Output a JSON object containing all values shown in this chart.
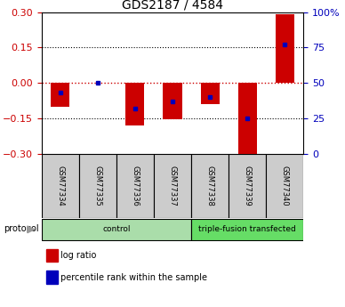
{
  "title": "GDS2187 / 4584",
  "samples": [
    "GSM77334",
    "GSM77335",
    "GSM77336",
    "GSM77337",
    "GSM77338",
    "GSM77339",
    "GSM77340"
  ],
  "log_ratios": [
    -0.1,
    0.0,
    -0.18,
    -0.155,
    -0.09,
    -0.305,
    0.29
  ],
  "percentile_ranks": [
    43,
    50,
    32,
    37,
    40,
    25,
    77
  ],
  "ylim_left": [
    -0.3,
    0.3
  ],
  "ylim_right": [
    0,
    100
  ],
  "yticks_left": [
    -0.3,
    -0.15,
    0,
    0.15,
    0.3
  ],
  "yticks_right": [
    0,
    25,
    50,
    75,
    100
  ],
  "ytick_labels_right": [
    "0",
    "25",
    "50",
    "75",
    "100%"
  ],
  "group_ranges": [
    [
      0,
      3,
      "control",
      "#aaddaa"
    ],
    [
      4,
      6,
      "triple-fusion transfected",
      "#66dd66"
    ]
  ],
  "protocol_label": "protocol",
  "bar_color_red": "#cc0000",
  "bar_color_blue": "#0000bb",
  "bar_width": 0.5,
  "hline_color": "#cc0000",
  "grid_color": "#000000",
  "legend_items": [
    "log ratio",
    "percentile rank within the sample"
  ],
  "left_tick_color": "#cc0000",
  "right_tick_color": "#0000bb",
  "sample_box_color": "#cccccc",
  "title_fontsize": 10
}
